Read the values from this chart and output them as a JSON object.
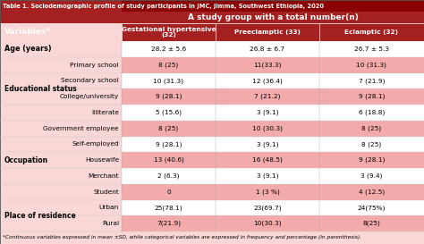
{
  "title": "Table 1. Sociodemographic profile of study participants in JMC, Jimma, Southwest Ethiopia, 2020",
  "header_group": "A study group with a total number(n)",
  "col_headers": [
    "Gestational hypertensive\n(32)",
    "Preeclamptic (33)",
    "Eclamptic (32)"
  ],
  "variables_col": "Variables*",
  "footnote": "*Continuous variables expressed in mean ±SD, while categorical variables are expressed in frequency and percentage (in parenthesis).",
  "rows": [
    {
      "section": "Age (years)",
      "sub": "",
      "values": [
        "28.2 ± 5.6",
        "26.8 ± 6.7",
        "26.7 ± 5.3"
      ],
      "shaded": false,
      "age_row": true
    },
    {
      "section": "Educational status",
      "sub": "Primary school",
      "values": [
        "8 (25)",
        "11(33.3)",
        "10 (31.3)"
      ],
      "shaded": true
    },
    {
      "section": "",
      "sub": "Secondary school",
      "values": [
        "10 (31.3)",
        "12 (36.4)",
        "7 (21.9)"
      ],
      "shaded": false
    },
    {
      "section": "",
      "sub": "College/university",
      "values": [
        "9 (28.1)",
        "7 (21.2)",
        "9 (28.1)"
      ],
      "shaded": true
    },
    {
      "section": "",
      "sub": "Illiterate",
      "values": [
        "5 (15.6)",
        "3 (9.1)",
        "6 (18.8)"
      ],
      "shaded": false
    },
    {
      "section": "Occupation",
      "sub": "Government employee",
      "values": [
        "8 (25)",
        "10 (30.3)",
        "8 (25)"
      ],
      "shaded": true
    },
    {
      "section": "",
      "sub": "Self-employed",
      "values": [
        "9 (28.1)",
        "3 (9.1)",
        "8 (25)"
      ],
      "shaded": false
    },
    {
      "section": "",
      "sub": "Housewife",
      "values": [
        "13 (40.6)",
        "16 (48.5)",
        "9 (28.1)"
      ],
      "shaded": true
    },
    {
      "section": "",
      "sub": "Merchant",
      "values": [
        "2 (6.3)",
        "3 (9.1)",
        "3 (9.4)"
      ],
      "shaded": false
    },
    {
      "section": "",
      "sub": "Student",
      "values": [
        "0",
        "1 (3 %)",
        "4 (12.5)"
      ],
      "shaded": true
    },
    {
      "section": "Place of residence",
      "sub": "Urban",
      "values": [
        "25(78.1)",
        "23(69.7)",
        "24(75%)"
      ],
      "shaded": false
    },
    {
      "section": "",
      "sub": "Rural",
      "values": [
        "7(21.9)",
        "10(30.3)",
        "8(25)"
      ],
      "shaded": true
    }
  ],
  "section_spans": [
    {
      "label": "Educational status",
      "start": 1,
      "end": 4
    },
    {
      "label": "Occupation",
      "start": 5,
      "end": 9
    },
    {
      "label": "Place of residence",
      "start": 10,
      "end": 11
    }
  ],
  "title_bg": "#8B0000",
  "header_bg": "#A52020",
  "shaded_bg": "#F2AAAA",
  "left_bg": "#F9D7D7",
  "white_bg": "#FFFFFF",
  "fig_bg": "#F9D7D7"
}
